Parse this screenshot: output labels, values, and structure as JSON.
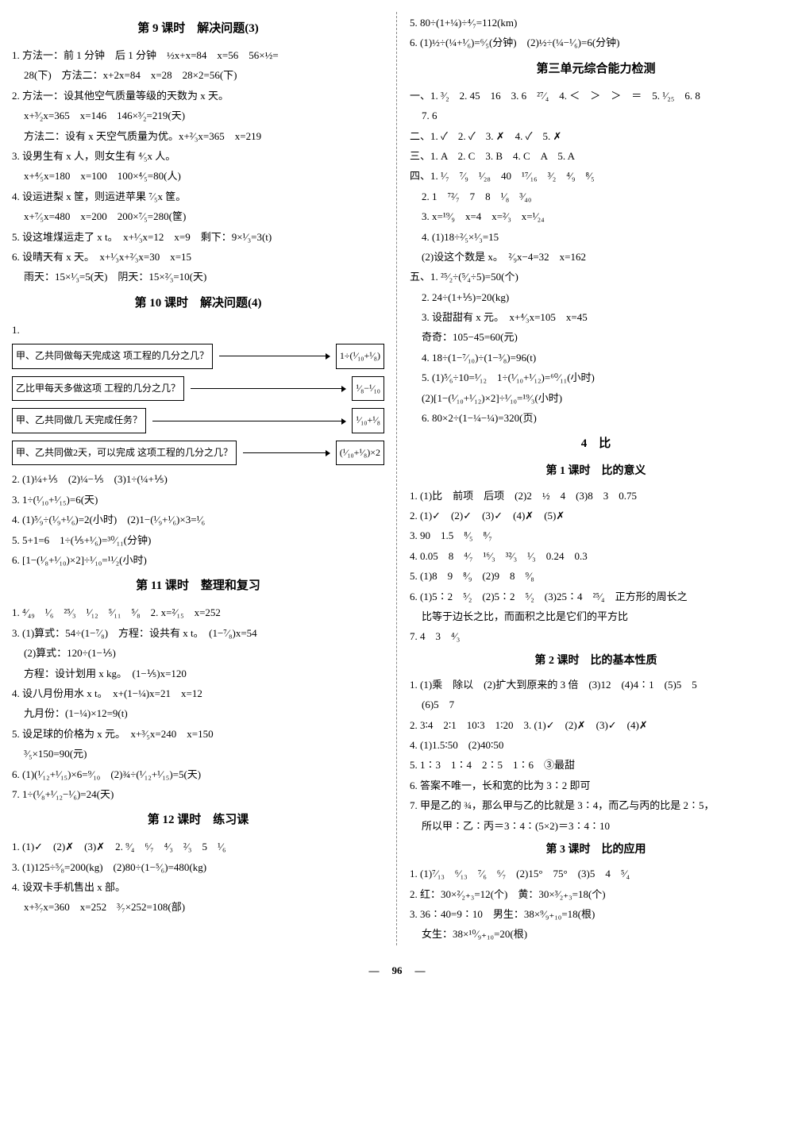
{
  "left": {
    "h9": "第 9 课时　解决问题(3)",
    "l9_1": "1. 方法一：前 1 分钟　后 1 分钟　½x+x=84　x=56　56×½=",
    "l9_1b": "28(下)　方法二：x+2x=84　x=28　28×2=56(下)",
    "l9_2": "2. 方法一：设其他空气质量等级的天数为 x 天。",
    "l9_2b": "x+³⁄₂x=365　x=146　146×³⁄₂=219(天)",
    "l9_2c": "方法二：设有 x 天空气质量为优。x+²⁄₃x=365　x=219",
    "l9_3": "3. 设男生有 x 人，则女生有 ⁴⁄₅x 人。",
    "l9_3b": "x+⁴⁄₅x=180　x=100　100×⁴⁄₅=80(人)",
    "l9_4": "4. 设运进梨 x 筐，则运进苹果 ⁷⁄₅x 筐。",
    "l9_4b": "x+⁷⁄₅x=480　x=200　200×⁷⁄₅=280(筐)",
    "l9_5": "5. 设这堆煤运走了 x t。　x+¹⁄₃x=12　x=9　剩下：9×¹⁄₃=3(t)",
    "l9_6": "6. 设晴天有 x 天。　x+¹⁄₃x+²⁄₃x=30　x=15",
    "l9_6b": "雨天：15×¹⁄₃=5(天)　阴天：15×²⁄₃=10(天)",
    "h10": "第 10 课时　解决问题(4)",
    "box1a": "甲、乙共同做每天完成这\n项工程的几分之几？",
    "box1b": "1÷(¹⁄₁₀+¹⁄₈)",
    "box2a": "乙比甲每天多做这项\n工程的几分之几？",
    "box2b": "¹⁄₈−¹⁄₁₀",
    "box3a": "甲、乙共同做几\n天完成任务？",
    "box3b": "¹⁄₁₀+¹⁄₈",
    "box4a": "甲、乙共同做2天，可以完成\n这项工程的几分之几？",
    "box4b": "(¹⁄₁₀+¹⁄₈)×2",
    "l10_2": "2. (1)¼+⅕　(2)¼−⅕　(3)1÷(¼+⅕)",
    "l10_3": "3. 1÷(¹⁄₁₀+¹⁄₁₅)=6(天)",
    "l10_4": "4. (1)⁵⁄₉÷(¹⁄₉+¹⁄₆)=2(小时)　(2)1−(¹⁄₉+¹⁄₆)×3=¹⁄₆",
    "l10_5": "5. 5+1=6　1÷(⅕+¹⁄₆)=³⁰⁄₁₁(分钟)",
    "l10_6": "6. [1−(¹⁄₈+¹⁄₁₀)×2]÷¹⁄₁₀=¹¹⁄₂(小时)",
    "h11": "第 11 课时　整理和复习",
    "l11_1": "1. ⁴⁄₄₉　¹⁄₆　²⁵⁄₃　¹⁄₁₂　⁵⁄₁₁　⁵⁄₈　2. x=²⁄₁₅　x=252",
    "l11_3": "3. (1)算式：54÷(1−⁷⁄₈)　方程：设共有 x t。　(1−⁷⁄₈)x=54",
    "l11_3b": "(2)算式：120÷(1−⅕)",
    "l11_3c": "方程：设计划用 x kg。　(1−⅕)x=120",
    "l11_4": "4. 设八月份用水 x t。　x+(1−¼)x=21　x=12",
    "l11_4b": "九月份：(1−¼)×12=9(t)",
    "l11_5": "5. 设足球的价格为 x 元。　x+³⁄₅x=240　x=150",
    "l11_5b": "³⁄₅×150=90(元)",
    "l11_6": "6. (1)(¹⁄₁₂+¹⁄₁₅)×6=⁹⁄₁₀　(2)¾÷(¹⁄₁₂+¹⁄₁₅)=5(天)",
    "l11_7": "7. 1÷(¹⁄₈+¹⁄₁₂−¹⁄₆)=24(天)",
    "h12": "第 12 课时　练习课",
    "l12_1": "1. (1)✓　(2)✗　(3)✗　2. ⁹⁄₄　⁶⁄₇　⁴⁄₃　²⁄₃　5　¹⁄₆",
    "l12_3": "3. (1)125÷⁵⁄₈=200(kg)　(2)80÷(1−⁵⁄₆)=480(kg)",
    "l12_4": "4. 设双卡手机售出 x 部。",
    "l12_4b": "x+³⁄₇x=360　x=252　³⁄₇×252=108(部)"
  },
  "right": {
    "l12_5": "5. 80÷(1+¼)÷⁴⁄₇=112(km)",
    "l12_6": "6. (1)½÷(¼+¹⁄₆)=⁶⁄₅(分钟)　(2)½÷(¼−¹⁄₆)=6(分钟)",
    "hU3": "第三单元综合能力检测",
    "u1": "一、1. ³⁄₂　2. 45　16　3. 6　²⁷⁄₄　4. ＜　＞　＞　＝　5. ¹⁄₂₅　6. 8",
    "u1b": "7. 6",
    "u2": "二、1. ✓　2. ✓　3. ✗　4. ✓　5. ✗",
    "u3": "三、1. A　2. C　3. B　4. C　A　5. A",
    "u4_1": "四、1. ¹⁄₇　⁷⁄₉　¹⁄₂₈　40　¹⁷⁄₁₆　³⁄₂　⁴⁄₉　⁸⁄₅",
    "u4_2": "2. 1　⁷²⁄₇　7　8　¹⁄₈　³⁄₄₀",
    "u4_3": "3. x=¹⁹⁄₉　x=4　x=²⁄₃　x=¹⁄₂₄",
    "u4_4a": "4. (1)18÷²⁄₅×¹⁄₃=15",
    "u4_4b": "(2)设这个数是 x。　²⁄₉x−4=32　x=162",
    "u5_1": "五、1. ²⁵⁄₂÷(⁵⁄₄÷5)=50(个)",
    "u5_2": "2. 24÷(1+⅕)=20(kg)",
    "u5_3": "3. 设甜甜有 x 元。　x+⁴⁄₃x=105　x=45",
    "u5_3b": "奇奇：105−45=60(元)",
    "u5_4": "4. 18÷(1−⁷⁄₁₀)÷(1−³⁄₈)=96(t)",
    "u5_5a": "5. (1)⁵⁄₆÷10=¹⁄₁₂　1÷(¹⁄₁₀+¹⁄₁₂)=⁶⁰⁄₁₁(小时)",
    "u5_5b": "(2)[1−(¹⁄₁₀+¹⁄₁₂)×2]÷¹⁄₁₀=¹⁹⁄₃(小时)",
    "u5_6": "6. 80×2÷(1−¼−¼)=320(页)",
    "h4": "4　比",
    "h4_1": "第 1 课时　比的意义",
    "b1_1": "1. (1)比　前项　后项　(2)2　½　4　(3)8　3　0.75",
    "b1_2": "2. (1)✓　(2)✓　(3)✓　(4)✗　(5)✗",
    "b1_3": "3. 90　1.5　⁸⁄₅　⁸⁄₇",
    "b1_4": "4. 0.05　8　⁴⁄₇　¹⁶⁄₃　³²⁄₃　¹⁄₃　0.24　0.3",
    "b1_5": "5. (1)8　9　⁸⁄₉　(2)9　8　⁹⁄₈",
    "b1_6": "6. (1)5∶2　⁵⁄₂　(2)5∶2　⁵⁄₂　(3)25∶4　²⁵⁄₄　正方形的周长之",
    "b1_6b": "比等于边长之比，而面积之比是它们的平方比",
    "b1_7": "7. 4　3　⁴⁄₃",
    "h4_2": "第 2 课时　比的基本性质",
    "b2_1": "1. (1)乘　除以　(2)扩大到原来的 3 倍　(3)12　(4)4∶1　(5)5　5",
    "b2_1b": "(6)5　7",
    "b2_2": "2. 3∶4　2∶1　10∶3　1∶20　3. (1)✓　(2)✗　(3)✓　(4)✗",
    "b2_4": "4. (1)1.5∶50　(2)40∶50",
    "b2_5": "5. 1∶3　1∶4　2∶5　1∶6　③最甜",
    "b2_6": "6. 答案不唯一，长和宽的比为 3∶2 即可",
    "b2_7": "7. 甲是乙的 ¾，那么甲与乙的比就是 3∶4，而乙与丙的比是 2∶5，",
    "b2_7b": "所以甲∶乙∶丙＝3∶4∶(5×2)＝3∶4∶10",
    "h4_3": "第 3 课时　比的应用",
    "b3_1": "1. (1)⁷⁄₁₃　⁶⁄₁₃　⁷⁄₆　⁶⁄₇　(2)15°　75°　(3)5　4　⁵⁄₄",
    "b3_2": "2. 红：30×²⁄₂₊₃=12(个)　黄：30×³⁄₂₊₃=18(个)",
    "b3_3": "3. 36∶40=9∶10　男生：38×⁹⁄₉₊₁₀=18(根)",
    "b3_3b": "女生：38×¹⁰⁄₉₊₁₀=20(根)"
  },
  "pagenum": "96"
}
